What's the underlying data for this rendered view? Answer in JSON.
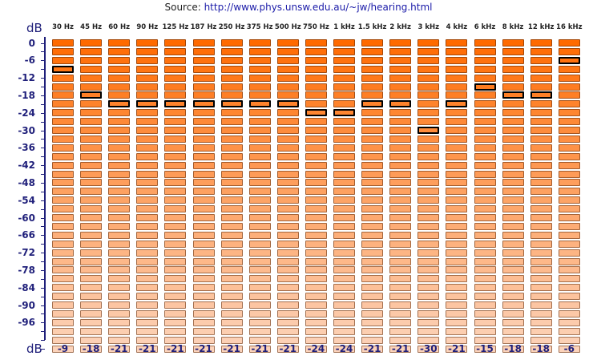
{
  "source": {
    "prefix": "Source: ",
    "url": "http://www.phys.unsw.edu.au/~jw/hearing.html"
  },
  "unit_top": "dB",
  "unit_bottom": "dB",
  "frequencies": [
    "30 Hz",
    "45 Hz",
    "60 Hz",
    "90 Hz",
    "125 Hz",
    "187 Hz",
    "250 Hz",
    "375 Hz",
    "500 Hz",
    "750 Hz",
    "1 kHz",
    "1.5 kHz",
    "2 kHz",
    "3 kHz",
    "4 kHz",
    "6 kHz",
    "8 kHz",
    "12 kHz",
    "16 kHz"
  ],
  "y_labels": [
    "0",
    "-6",
    "-12",
    "-18",
    "-24",
    "-30",
    "-36",
    "-42",
    "-48",
    "-54",
    "-60",
    "-66",
    "-72",
    "-78",
    "-84",
    "-90",
    "-96"
  ],
  "levels": [
    0,
    -3,
    -6,
    -9,
    -12,
    -15,
    -18,
    -21,
    -24,
    -27,
    -30,
    -33,
    -36,
    -39,
    -42,
    -45,
    -48,
    -51,
    -54,
    -57,
    -60,
    -63,
    -66,
    -69,
    -72,
    -75,
    -78,
    -81,
    -84,
    -87,
    -90,
    -93,
    -96,
    -99,
    -102,
    -105
  ],
  "selected_db": [
    -9,
    -18,
    -21,
    -21,
    -21,
    -21,
    -21,
    -21,
    -21,
    -24,
    -24,
    -21,
    -21,
    -30,
    -21,
    -15,
    -18,
    -18,
    -6
  ],
  "colors": {
    "cell_top": "#ff6a00",
    "cell_bottom": "#fcd3ba",
    "axis": "#1f1f7a",
    "link": "#1a1aa8"
  }
}
